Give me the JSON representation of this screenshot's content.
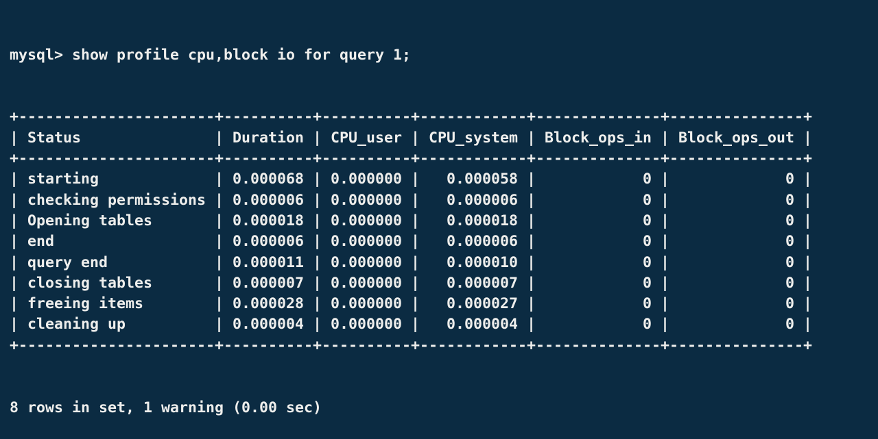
{
  "terminal": {
    "prompt_label": "mysql> ",
    "command": "show profile cpu,block io for query 1;",
    "result_summary": "8 rows in set, 1 warning (0.00 sec)"
  },
  "profile_table": {
    "columns": [
      {
        "name": "Status",
        "align": "left"
      },
      {
        "name": "Duration",
        "align": "right"
      },
      {
        "name": "CPU_user",
        "align": "right"
      },
      {
        "name": "CPU_system",
        "align": "right"
      },
      {
        "name": "Block_ops_in",
        "align": "right"
      },
      {
        "name": "Block_ops_out",
        "align": "right"
      }
    ],
    "rows": [
      [
        "starting",
        "0.000068",
        "0.000000",
        "0.000058",
        "0",
        "0"
      ],
      [
        "checking permissions",
        "0.000006",
        "0.000000",
        "0.000006",
        "0",
        "0"
      ],
      [
        "Opening tables",
        "0.000018",
        "0.000000",
        "0.000018",
        "0",
        "0"
      ],
      [
        "end",
        "0.000006",
        "0.000000",
        "0.000006",
        "0",
        "0"
      ],
      [
        "query end",
        "0.000011",
        "0.000000",
        "0.000010",
        "0",
        "0"
      ],
      [
        "closing tables",
        "0.000007",
        "0.000000",
        "0.000007",
        "0",
        "0"
      ],
      [
        "freeing items",
        "0.000028",
        "0.000000",
        "0.000027",
        "0",
        "0"
      ],
      [
        "cleaning up",
        "0.000004",
        "0.000000",
        "0.000004",
        "0",
        "0"
      ]
    ]
  },
  "colors": {
    "background": "#0b2b42",
    "foreground": "#eeeeec"
  }
}
